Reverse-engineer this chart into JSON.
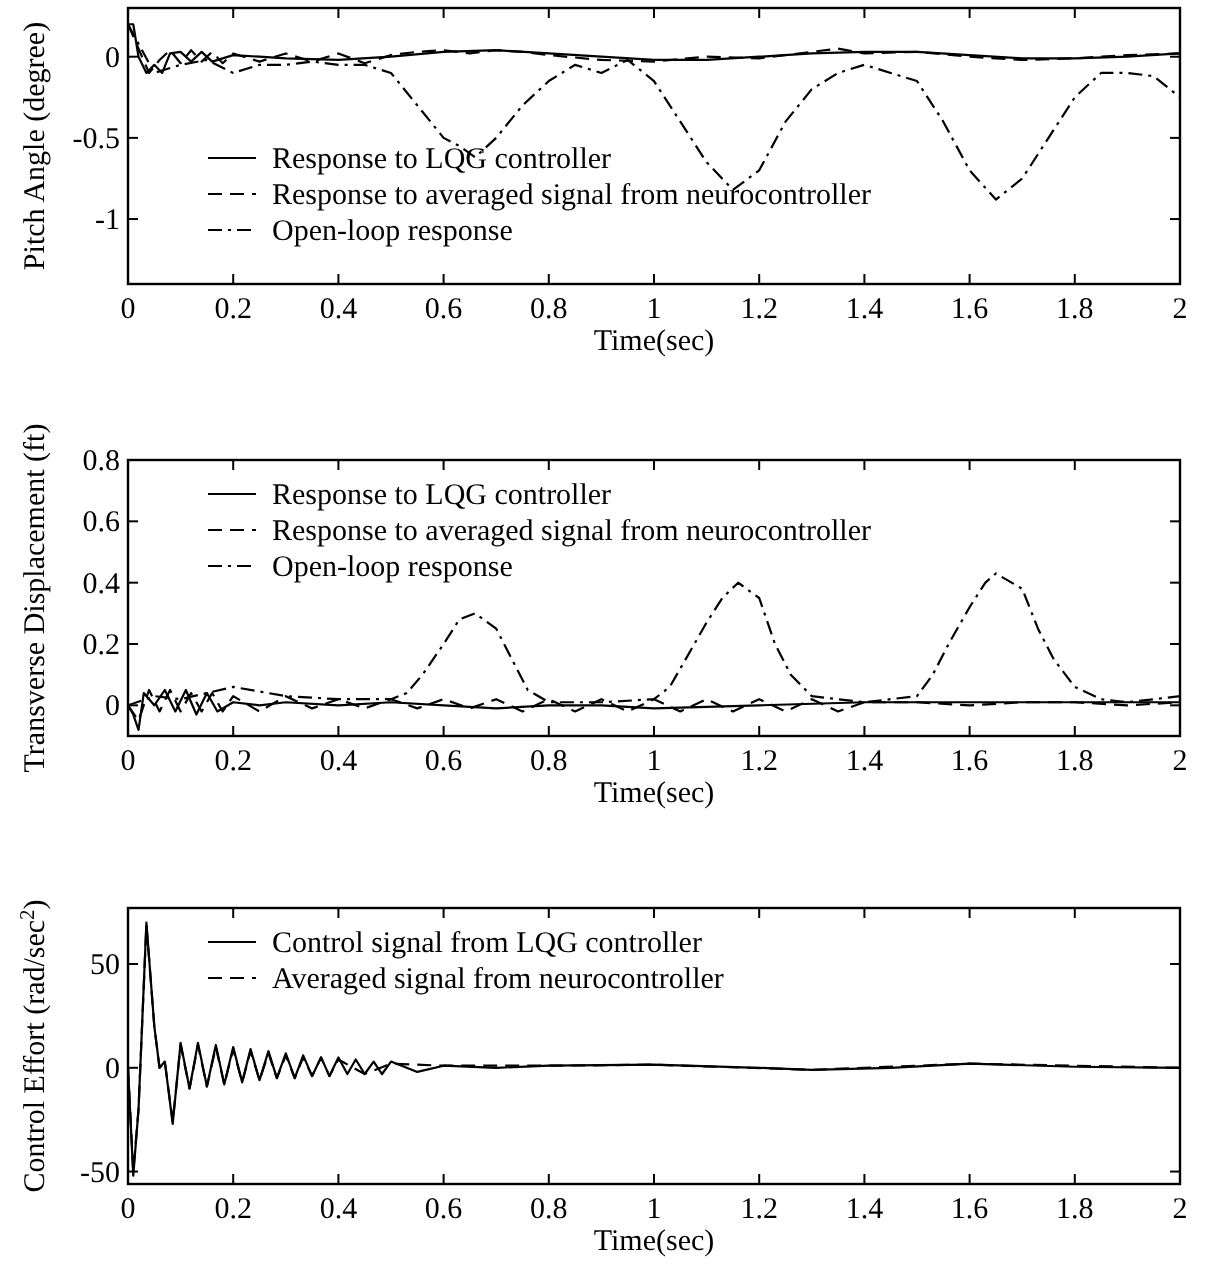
{
  "chart_data": [
    {
      "type": "line",
      "xlabel": "Time(sec)",
      "ylabel": "Pitch Angle (degree)",
      "xlim": [
        0,
        2
      ],
      "ylim": [
        -1.4,
        0.3
      ],
      "xticks": [
        0,
        0.2,
        0.4,
        0.6,
        0.8,
        1,
        1.2,
        1.4,
        1.6,
        1.8,
        2
      ],
      "yticks": [
        -1,
        -0.5,
        0
      ],
      "legend": "bottom left",
      "grid": false,
      "marker": "none",
      "series": [
        {
          "name": "Response to LQG controller",
          "color": "#000000",
          "line_style": "solid",
          "x": [
            0,
            0.01,
            0.02,
            0.035,
            0.05,
            0.065,
            0.08,
            0.1,
            0.12,
            0.14,
            0.16,
            0.2,
            0.25,
            0.3,
            0.4,
            0.5,
            0.6,
            0.7,
            0.8,
            0.9,
            1.0,
            1.1,
            1.2,
            1.3,
            1.4,
            1.5,
            1.6,
            1.7,
            1.8,
            1.9,
            2.0
          ],
          "values": [
            0.2,
            0.2,
            0.0,
            -0.1,
            -0.05,
            -0.1,
            0.02,
            0.03,
            -0.03,
            0.03,
            -0.03,
            0.01,
            0,
            -0.01,
            -0.02,
            0,
            0.03,
            0.04,
            0.02,
            0,
            -0.02,
            -0.02,
            0,
            0.02,
            0.03,
            0.03,
            0.01,
            -0.01,
            -0.01,
            0,
            0.02
          ]
        },
        {
          "name": "Response to averaged signal from neurocontroller",
          "color": "#000000",
          "line_style": "dashed",
          "x": [
            0,
            0.02,
            0.04,
            0.06,
            0.08,
            0.1,
            0.12,
            0.14,
            0.16,
            0.18,
            0.2,
            0.25,
            0.3,
            0.35,
            0.4,
            0.45,
            0.5,
            0.55,
            0.6,
            0.65,
            0.7,
            0.75,
            0.8,
            0.9,
            1.0,
            1.1,
            1.2,
            1.3,
            1.35,
            1.4,
            1.5,
            1.6,
            1.7,
            1.8,
            1.9,
            2.0
          ],
          "values": [
            0.2,
            0.05,
            -0.1,
            -0.02,
            0.04,
            -0.04,
            0.04,
            -0.03,
            0.03,
            -0.04,
            0.02,
            -0.03,
            0.02,
            -0.03,
            0.02,
            -0.04,
            0.01,
            0.03,
            0.04,
            0.02,
            0.04,
            0.03,
            0.01,
            -0.02,
            -0.03,
            0,
            -0.01,
            0.03,
            0.05,
            0.02,
            0.03,
            0,
            -0.02,
            -0.01,
            0.01,
            0.02
          ]
        },
        {
          "name": "Open-loop response",
          "color": "#000000",
          "line_style": "dashdot",
          "x": [
            0,
            0.05,
            0.1,
            0.15,
            0.2,
            0.25,
            0.3,
            0.35,
            0.4,
            0.45,
            0.5,
            0.55,
            0.6,
            0.63,
            0.66,
            0.7,
            0.75,
            0.8,
            0.85,
            0.9,
            0.95,
            1.0,
            1.05,
            1.1,
            1.15,
            1.2,
            1.25,
            1.3,
            1.35,
            1.4,
            1.45,
            1.5,
            1.55,
            1.6,
            1.65,
            1.7,
            1.75,
            1.8,
            1.85,
            1.9,
            1.95,
            2.0
          ],
          "values": [
            0.2,
            -0.1,
            -0.05,
            -0.02,
            -0.1,
            -0.05,
            -0.05,
            -0.03,
            -0.05,
            -0.05,
            -0.1,
            -0.3,
            -0.5,
            -0.55,
            -0.62,
            -0.5,
            -0.3,
            -0.15,
            -0.05,
            -0.1,
            -0.02,
            -0.15,
            -0.4,
            -0.65,
            -0.82,
            -0.7,
            -0.4,
            -0.2,
            -0.1,
            -0.05,
            -0.1,
            -0.15,
            -0.4,
            -0.7,
            -0.88,
            -0.75,
            -0.5,
            -0.25,
            -0.1,
            -0.1,
            -0.12,
            -0.25
          ]
        }
      ]
    },
    {
      "type": "line",
      "xlabel": "Time(sec)",
      "ylabel": "Transverse Displacement (ft)",
      "xlim": [
        0,
        2
      ],
      "ylim": [
        -0.1,
        0.8
      ],
      "xticks": [
        0,
        0.2,
        0.4,
        0.6,
        0.8,
        1,
        1.2,
        1.4,
        1.6,
        1.8,
        2
      ],
      "yticks": [
        0,
        0.2,
        0.4,
        0.6,
        0.8
      ],
      "legend": "top left",
      "grid": false,
      "marker": "none",
      "series": [
        {
          "name": "Response to LQG controller",
          "color": "#000000",
          "line_style": "solid",
          "x": [
            0,
            0.01,
            0.02,
            0.03,
            0.05,
            0.07,
            0.09,
            0.11,
            0.13,
            0.15,
            0.17,
            0.2,
            0.25,
            0.3,
            0.4,
            0.5,
            0.6,
            0.7,
            0.8,
            0.9,
            1.0,
            1.2,
            1.4,
            1.6,
            1.8,
            2.0
          ],
          "values": [
            0,
            -0.03,
            -0.08,
            0.04,
            0,
            0.05,
            -0.02,
            0.05,
            -0.03,
            0.04,
            -0.02,
            0.01,
            0,
            0.01,
            0,
            0.01,
            0,
            -0.01,
            0,
            0,
            -0.01,
            0,
            0.01,
            0.01,
            0.01,
            0.01
          ]
        },
        {
          "name": "Response to averaged signal from neurocontroller",
          "color": "#000000",
          "line_style": "dashed",
          "x": [
            0,
            0.02,
            0.04,
            0.06,
            0.08,
            0.1,
            0.12,
            0.14,
            0.16,
            0.18,
            0.2,
            0.25,
            0.3,
            0.35,
            0.4,
            0.45,
            0.5,
            0.55,
            0.6,
            0.65,
            0.7,
            0.75,
            0.8,
            0.85,
            0.9,
            0.95,
            1.0,
            1.05,
            1.1,
            1.15,
            1.2,
            1.25,
            1.3,
            1.35,
            1.4,
            1.5,
            1.6,
            1.7,
            1.8,
            1.9,
            2.0
          ],
          "values": [
            0,
            -0.05,
            0.05,
            -0.02,
            0.05,
            -0.02,
            0.04,
            -0.02,
            0.04,
            -0.02,
            0.03,
            -0.02,
            0.03,
            -0.01,
            0.02,
            -0.01,
            0.02,
            -0.01,
            0.02,
            -0.01,
            0.02,
            -0.02,
            0.02,
            -0.02,
            0.02,
            -0.02,
            0.02,
            -0.02,
            0.02,
            -0.02,
            0.02,
            -0.02,
            0.02,
            -0.02,
            0.01,
            0.01,
            0,
            0.01,
            0.01,
            0,
            0.01
          ]
        },
        {
          "name": "Open-loop response",
          "color": "#000000",
          "line_style": "dashdot",
          "x": [
            0,
            0.05,
            0.1,
            0.2,
            0.3,
            0.4,
            0.5,
            0.53,
            0.56,
            0.6,
            0.63,
            0.66,
            0.7,
            0.73,
            0.76,
            0.8,
            0.9,
            1.0,
            1.03,
            1.06,
            1.1,
            1.13,
            1.16,
            1.2,
            1.23,
            1.26,
            1.3,
            1.4,
            1.5,
            1.53,
            1.56,
            1.6,
            1.63,
            1.65,
            1.7,
            1.73,
            1.76,
            1.8,
            1.85,
            1.9,
            2.0
          ],
          "values": [
            0,
            0.03,
            0.02,
            0.06,
            0.03,
            0.02,
            0.02,
            0.04,
            0.1,
            0.2,
            0.28,
            0.3,
            0.25,
            0.15,
            0.05,
            0.01,
            0.01,
            0.02,
            0.06,
            0.15,
            0.27,
            0.35,
            0.4,
            0.35,
            0.2,
            0.1,
            0.03,
            0.01,
            0.03,
            0.1,
            0.2,
            0.32,
            0.4,
            0.43,
            0.38,
            0.25,
            0.15,
            0.06,
            0.02,
            0.01,
            0.03
          ]
        }
      ]
    },
    {
      "type": "line",
      "xlabel": "Time(sec)",
      "ylabel": "Control Effort (rad/sec$^{2}$)",
      "xlim": [
        0,
        2
      ],
      "ylim": [
        -56,
        77
      ],
      "xticks": [
        0,
        0.2,
        0.4,
        0.6,
        0.8,
        1,
        1.2,
        1.4,
        1.6,
        1.8,
        2
      ],
      "yticks": [
        -50,
        0,
        50
      ],
      "legend": "top left",
      "grid": false,
      "marker": "none",
      "series": [
        {
          "name": "Control signal from LQG controller",
          "color": "#000000",
          "line_style": "solid",
          "x": [
            0,
            0.01,
            0.02,
            0.035,
            0.05,
            0.06,
            0.07,
            0.085,
            0.1,
            0.117,
            0.133,
            0.15,
            0.167,
            0.183,
            0.2,
            0.217,
            0.233,
            0.25,
            0.267,
            0.283,
            0.3,
            0.317,
            0.333,
            0.35,
            0.367,
            0.383,
            0.4,
            0.417,
            0.433,
            0.45,
            0.467,
            0.483,
            0.5,
            0.55,
            0.6,
            0.7,
            0.8,
            1.0,
            1.2,
            1.3,
            1.45,
            1.6,
            1.8,
            2.0
          ],
          "values": [
            0,
            -52,
            -20,
            70,
            20,
            0,
            3,
            -27,
            12,
            -10,
            12,
            -9,
            11,
            -8,
            10,
            -7,
            9,
            -6,
            8,
            -5,
            7,
            -5,
            6,
            -4,
            5,
            -4,
            5,
            -3,
            4,
            -3,
            3,
            -3,
            3,
            -2,
            1,
            0,
            1,
            1.5,
            0,
            -1,
            0,
            2,
            0.5,
            0
          ]
        },
        {
          "name": "Averaged signal from neurocontroller",
          "color": "#000000",
          "line_style": "dashed",
          "x": [
            0,
            0.01,
            0.02,
            0.035,
            0.05,
            0.06,
            0.07,
            0.085,
            0.1,
            0.117,
            0.133,
            0.15,
            0.167,
            0.183,
            0.2,
            0.217,
            0.233,
            0.25,
            0.267,
            0.283,
            0.3,
            0.317,
            0.333,
            0.35,
            0.367,
            0.383,
            0.4,
            0.45,
            0.5,
            0.6,
            0.8,
            1.0,
            1.3,
            1.6,
            2.0
          ],
          "values": [
            0,
            -50,
            -20,
            69,
            20,
            0,
            3,
            -26,
            11,
            -10,
            11,
            -9,
            10,
            -8,
            9,
            -7,
            8,
            -6,
            7,
            -5,
            6,
            -5,
            5,
            -4,
            5,
            -4,
            4,
            -3,
            2,
            1,
            1,
            1.5,
            -1,
            2,
            0
          ]
        }
      ]
    }
  ]
}
